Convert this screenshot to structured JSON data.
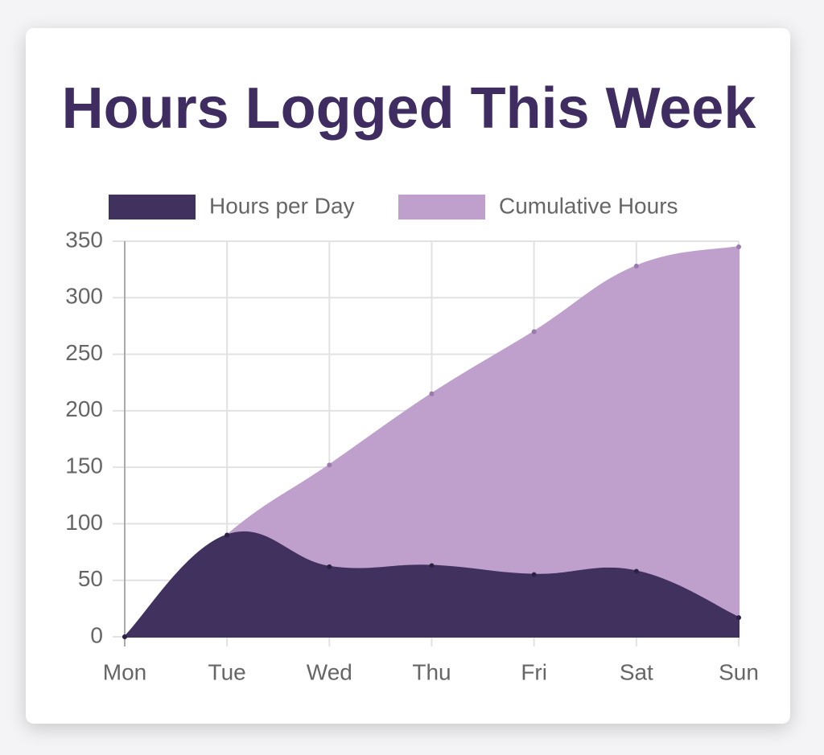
{
  "chart_data": {
    "type": "line",
    "title": "Hours Logged This Week",
    "categories": [
      "Mon",
      "Tue",
      "Wed",
      "Thu",
      "Fri",
      "Sat",
      "Sun"
    ],
    "series": [
      {
        "name": "Hours per Day",
        "color": "#41315f",
        "values": [
          0,
          90,
          62,
          63,
          55,
          58,
          17
        ]
      },
      {
        "name": "Cumulative Hours",
        "color": "#bfa0cc",
        "values": [
          0,
          90,
          152,
          215,
          270,
          328,
          345
        ]
      }
    ],
    "ylim": [
      0,
      350
    ],
    "yticks": [
      0,
      50,
      100,
      150,
      200,
      250,
      300,
      350
    ],
    "grid": true,
    "fill": true
  }
}
